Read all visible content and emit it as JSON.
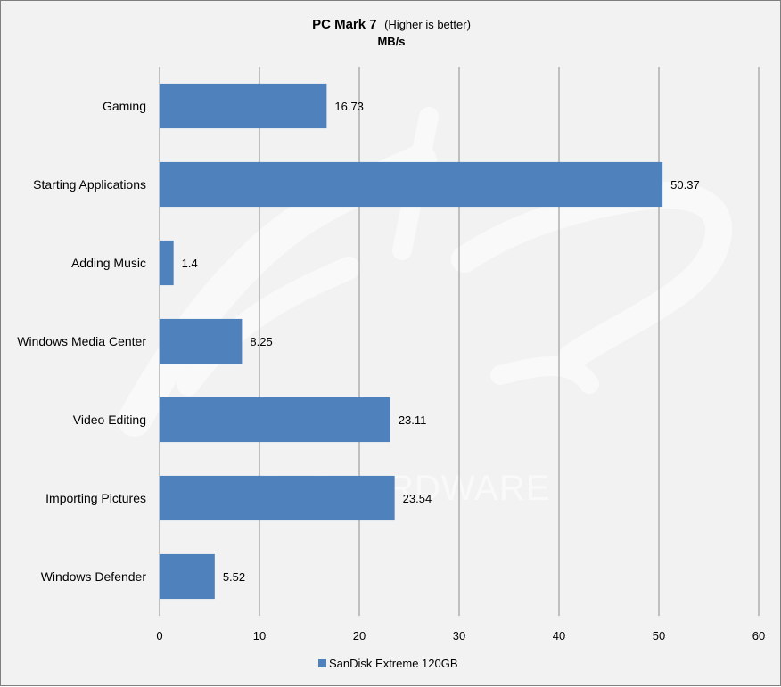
{
  "chart_data": {
    "type": "bar",
    "orientation": "horizontal",
    "title": "PC Mark 7",
    "subtitle": "(Higher is better)",
    "unit_label": "MB/s",
    "categories": [
      "Gaming",
      "Starting Applications",
      "Adding Music",
      "Windows Media Center",
      "Video Editing",
      "Importing Pictures",
      "Windows Defender"
    ],
    "series": [
      {
        "name": "SanDisk Extreme 120GB",
        "color": "#4f81bd",
        "values": [
          16.73,
          50.37,
          1.4,
          8.25,
          23.11,
          23.54,
          5.52
        ],
        "labels": [
          "16.73",
          "50.37",
          "1.4",
          "8.25",
          "23.11",
          "23.54",
          "5.52"
        ]
      }
    ],
    "xlim": [
      0,
      60
    ],
    "x_ticks": [
      0,
      10,
      20,
      30,
      40,
      50,
      60
    ],
    "x_tick_labels": [
      "0",
      "10",
      "20",
      "30",
      "40",
      "50",
      "60"
    ],
    "grid": true,
    "legend_position": "bottom",
    "background": "#f2f2f2",
    "watermark": "ARABHARDWARE"
  }
}
